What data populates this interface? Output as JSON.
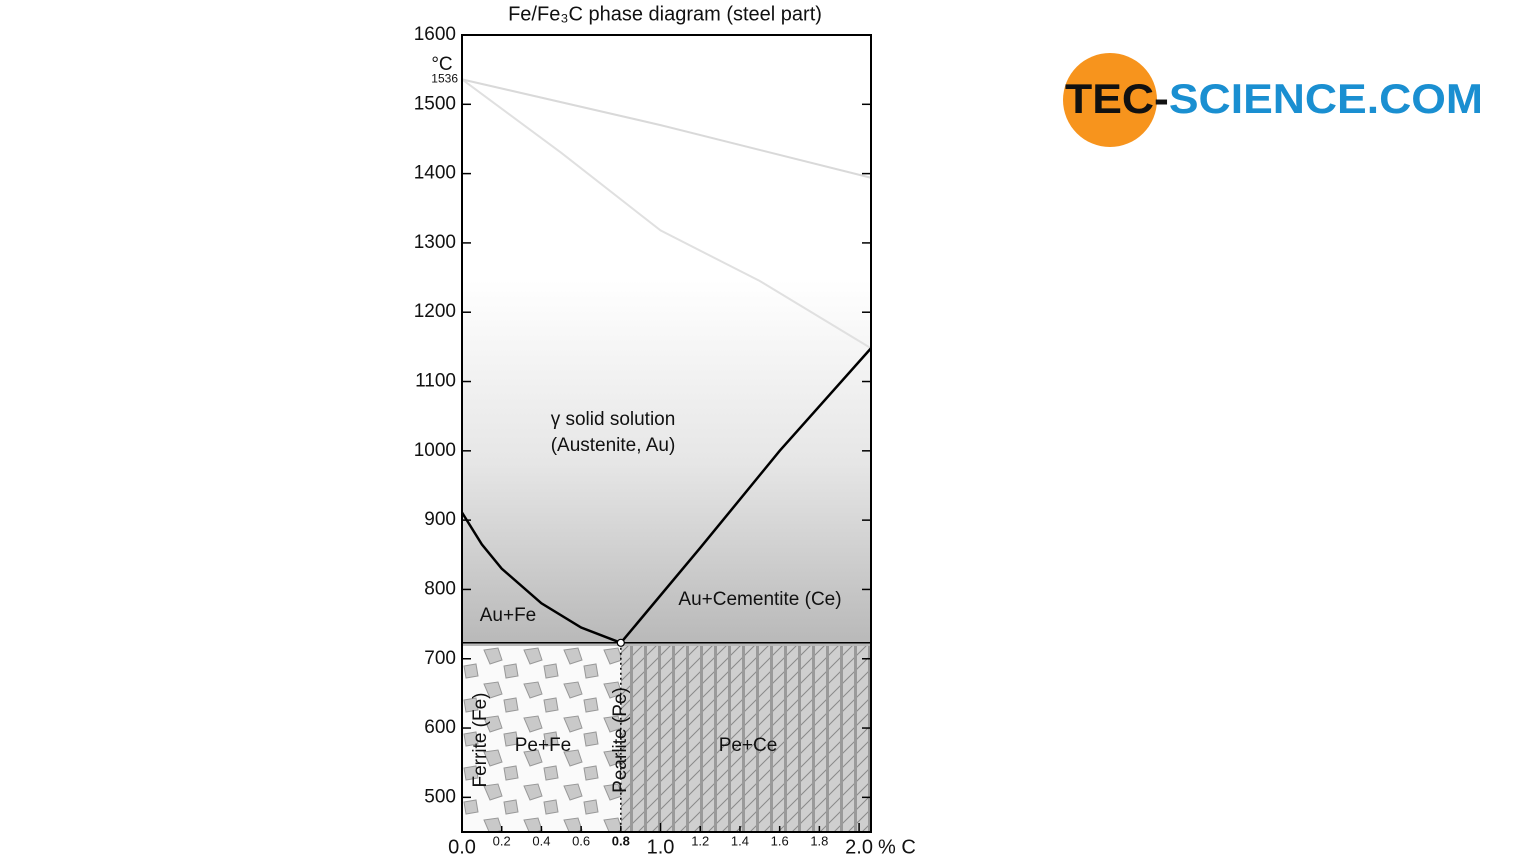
{
  "chart_data": {
    "type": "line",
    "title": "Fe/Fe₃C phase diagram (steel part)",
    "x_label": "% C",
    "y_label": "°C",
    "xlim": [
      0,
      2.06
    ],
    "ylim": [
      450,
      1600
    ],
    "xticks": [
      {
        "value": 0,
        "label": "0.0"
      },
      0.2,
      0.4,
      0.6,
      0.8,
      {
        "value": 1,
        "label": "1.0"
      },
      1.2,
      1.4,
      1.6,
      1.8,
      {
        "value": 2,
        "label": "2.0"
      }
    ],
    "yticks": [
      500,
      600,
      700,
      800,
      900,
      1000,
      1100,
      1200,
      1300,
      1400,
      1500,
      1600
    ],
    "y_markers": [
      1536
    ],
    "series": [
      {
        "color": "#d9d9d9",
        "style": "solid",
        "width": 2,
        "x": [
          0,
          1.0,
          2.06
        ],
        "values": [
          1536,
          1470,
          1394
        ]
      },
      {
        "color": "#e0e0e0",
        "style": "solid",
        "width": 2,
        "x": [
          0,
          0.5,
          1.0,
          1.5,
          2.06
        ],
        "values": [
          1536,
          1430,
          1318,
          1245,
          1148
        ]
      },
      {
        "color": "#000000",
        "style": "solid",
        "width": 2.5,
        "x": [
          0,
          0.1,
          0.2,
          0.4,
          0.6,
          0.8
        ],
        "values": [
          911,
          865,
          830,
          780,
          745,
          723
        ]
      },
      {
        "color": "#000000",
        "style": "solid",
        "width": 2.5,
        "x": [
          0.8,
          1.2,
          1.6,
          2.06
        ],
        "values": [
          723,
          860,
          1000,
          1148
        ]
      },
      {
        "color": "#000000",
        "style": "solid",
        "width": 1.5,
        "x": [
          0,
          2.06
        ],
        "values": [
          723,
          723
        ]
      },
      {
        "color": "#000000",
        "style": "dotted",
        "width": 1.5,
        "x": [
          0.8,
          0.8
        ],
        "values": [
          723,
          450
        ]
      }
    ],
    "annotations": [
      "γ solid solution",
      "(Austenite, Au)",
      "Au+Fe",
      "Au+Cementite (Ce)",
      "Ferrite (Fe)",
      "Pearlite (Pe)",
      "Pe+Fe",
      "Pe+Ce"
    ]
  },
  "logo": {
    "dark": "TEC-",
    "light": "SCIENCE.COM"
  }
}
